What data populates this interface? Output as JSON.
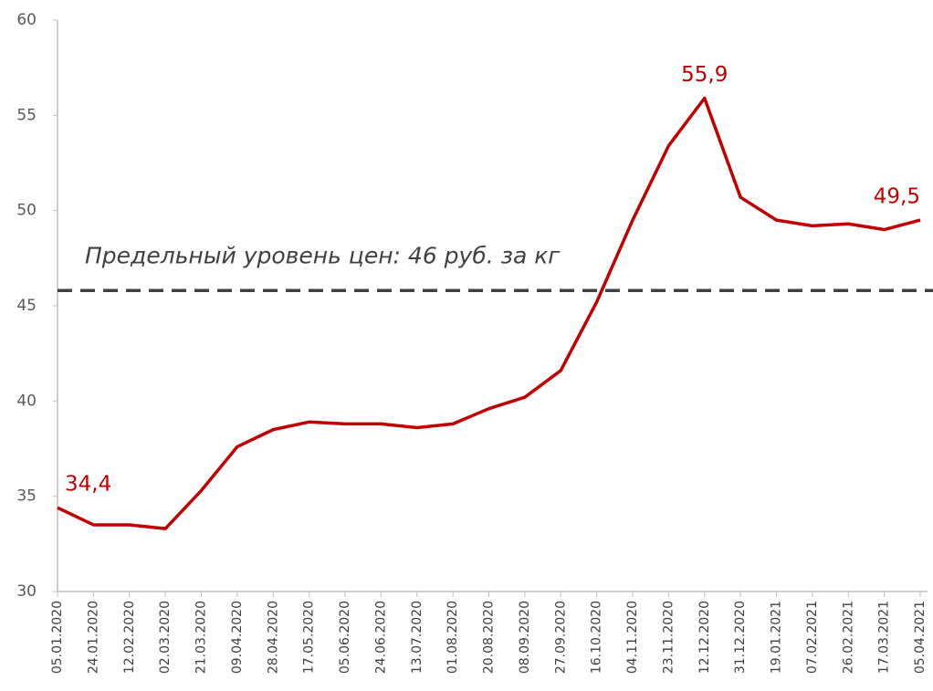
{
  "chart_data": {
    "type": "line",
    "x": [
      "05.01.2020",
      "24.01.2020",
      "12.02.2020",
      "02.03.2020",
      "21.03.2020",
      "09.04.2020",
      "28.04.2020",
      "17.05.2020",
      "05.06.2020",
      "24.06.2020",
      "13.07.2020",
      "01.08.2020",
      "20.08.2020",
      "08.09.2020",
      "27.09.2020",
      "16.10.2020",
      "04.11.2020",
      "23.11.2020",
      "12.12.2020",
      "31.12.2020",
      "19.01.2021",
      "07.02.2021",
      "26.02.2021",
      "17.03.2021",
      "05.04.2021"
    ],
    "series": [
      {
        "color": "#c00000",
        "values": [
          34.4,
          33.5,
          33.5,
          33.3,
          35.3,
          37.6,
          38.5,
          38.9,
          38.8,
          38.8,
          38.6,
          38.8,
          39.6,
          40.2,
          41.6,
          45.2,
          49.5,
          53.4,
          55.9,
          50.7,
          49.5,
          49.2,
          49.3,
          49.0,
          49.5
        ],
        "value_labels": [
          "34,4",
          null,
          null,
          null,
          null,
          null,
          null,
          null,
          null,
          null,
          null,
          null,
          null,
          null,
          null,
          null,
          null,
          null,
          "55,9",
          null,
          null,
          null,
          null,
          null,
          "49,5"
        ]
      }
    ],
    "xlim": [
      "05.01.2020",
      "05.04.2021"
    ],
    "xticks": [
      "05.01.2020",
      "24.01.2020",
      "12.02.2020",
      "02.03.2020",
      "21.03.2020",
      "09.04.2020",
      "28.04.2020",
      "17.05.2020",
      "05.06.2020",
      "24.06.2020",
      "13.07.2020",
      "01.08.2020",
      "20.08.2020",
      "08.09.2020",
      "27.09.2020",
      "16.10.2020",
      "04.11.2020",
      "23.11.2020",
      "12.12.2020",
      "31.12.2020",
      "19.01.2021",
      "07.02.2021",
      "26.02.2021",
      "17.03.2021",
      "05.04.2021"
    ],
    "ylim": [
      30,
      60
    ],
    "yticks": [
      30,
      35,
      40,
      45,
      50,
      55,
      60
    ],
    "reference_line": {
      "value": 45.8,
      "label": "Предельный уровень цен: 46 руб. за кг",
      "color": "#404040"
    }
  }
}
